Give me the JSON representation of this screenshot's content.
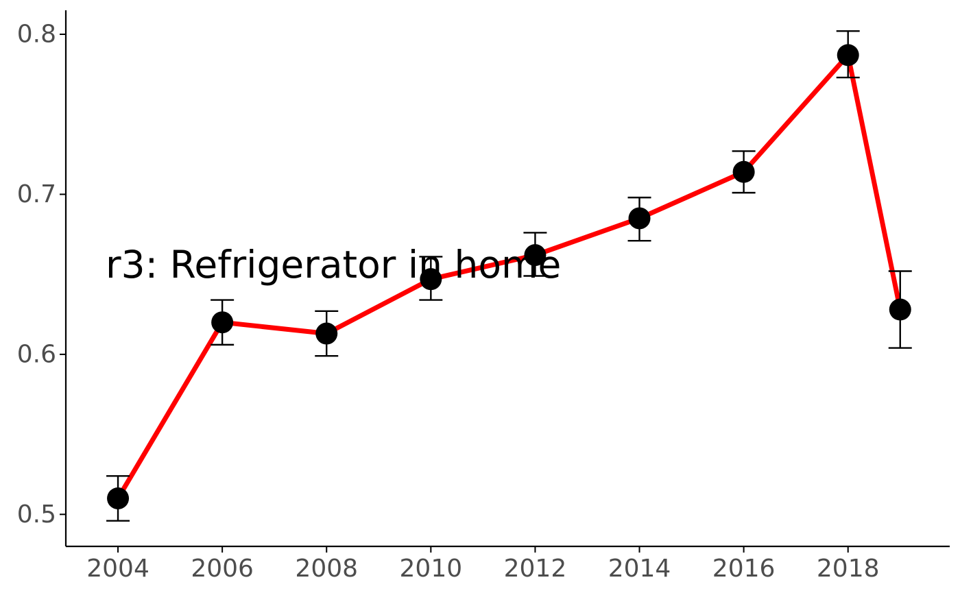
{
  "chart_data": {
    "type": "line",
    "title": "",
    "xlabel": "",
    "ylabel": "",
    "annotation": {
      "text": "r3: Refrigerator in home",
      "x": 2003,
      "y": 0.656
    },
    "x": [
      2004,
      2006,
      2008,
      2010,
      2012,
      2014,
      2016,
      2018,
      2019
    ],
    "series": [
      {
        "values": [
          0.51,
          0.62,
          0.613,
          0.647,
          0.662,
          0.685,
          0.714,
          0.787,
          0.628
        ],
        "lower": [
          0.496,
          0.606,
          0.599,
          0.634,
          0.649,
          0.671,
          0.701,
          0.773,
          0.604
        ],
        "upper": [
          0.524,
          0.634,
          0.627,
          0.661,
          0.676,
          0.698,
          0.727,
          0.802,
          0.652
        ]
      }
    ],
    "xticks": [
      2004,
      2006,
      2008,
      2010,
      2012,
      2014,
      2016,
      2018
    ],
    "xtick_labels": [
      "2004",
      "2006",
      "2008",
      "2010",
      "2012",
      "2014",
      "2016",
      "2018"
    ],
    "yticks": [
      0.5,
      0.6,
      0.7,
      0.8
    ],
    "ytick_labels": [
      "0.5",
      "0.6",
      "0.7",
      "0.8"
    ],
    "xlim": [
      2003.0,
      2019.95
    ],
    "ylim": [
      0.48,
      0.815
    ],
    "grid": false,
    "legend": "none",
    "colors": {
      "line": "#ff0000",
      "points": "#000000",
      "error_bars": "#000000",
      "axis": "#000000",
      "tick_text": "#4d4d4d"
    }
  }
}
